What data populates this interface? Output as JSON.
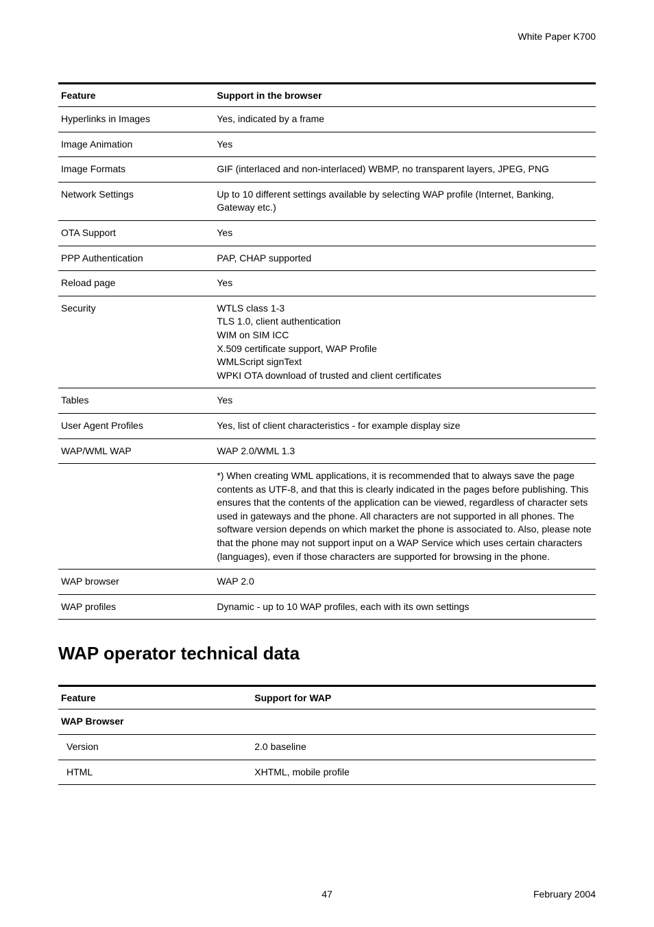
{
  "header": {
    "label": "White Paper",
    "model": "K700"
  },
  "table1": {
    "head": {
      "feature": "Feature",
      "support": "Support in the browser"
    },
    "rows": [
      {
        "feature": "Hyperlinks in Images",
        "support": "Yes, indicated by a frame"
      },
      {
        "feature": "Image Animation",
        "support": "Yes"
      },
      {
        "feature": "Image Formats",
        "support": "GIF (interlaced and non-interlaced) WBMP, no transparent layers, JPEG, PNG"
      },
      {
        "feature": "Network Settings",
        "support": "Up to 10 different settings available by selecting WAP profile (Internet, Banking, Gateway etc.)"
      },
      {
        "feature": "OTA Support",
        "support": "Yes"
      },
      {
        "feature": "PPP Authentication",
        "support": "PAP, CHAP supported"
      },
      {
        "feature": "Reload page",
        "support": "Yes"
      },
      {
        "feature": "Security",
        "support": "WTLS class 1-3\nTLS 1.0, client authentication\nWIM on SIM ICC\nX.509 certificate support, WAP Profile\nWMLScript signText\nWPKI OTA download of trusted and client certificates"
      },
      {
        "feature": "Tables",
        "support": "Yes"
      },
      {
        "feature": "User Agent Profiles",
        "support": "Yes, list of client characteristics - for example display size"
      },
      {
        "feature": "WAP/WML WAP",
        "support": "WAP 2.0/WML 1.3"
      },
      {
        "feature": "",
        "support": "*) When creating WML applications, it is recommended that to always save the page contents as UTF-8, and that this is clearly indicated in the pages before publishing. This ensures that the contents of the application can be viewed, regardless of character sets used in gateways and the phone. All characters are not supported in all phones. The software version depends on which market the phone is associated to. Also, please note that the phone may not support input on a WAP Service which uses certain characters (languages), even if those characters are supported for browsing in the phone."
      },
      {
        "feature": "WAP browser",
        "support": "WAP 2.0"
      },
      {
        "feature": "WAP profiles",
        "support": "Dynamic - up to 10 WAP profiles, each with its own settings"
      }
    ]
  },
  "section_title": "WAP operator technical data",
  "table2": {
    "head": {
      "feature": "Feature",
      "support": "Support for WAP"
    },
    "rows": [
      {
        "feature": "WAP Browser",
        "bold": true,
        "support": ""
      },
      {
        "feature": "Version",
        "indent": true,
        "support": "2.0 baseline"
      },
      {
        "feature": "HTML",
        "indent": true,
        "support": "XHTML, mobile profile"
      }
    ]
  },
  "footer": {
    "page": "47",
    "date": "February 2004"
  }
}
